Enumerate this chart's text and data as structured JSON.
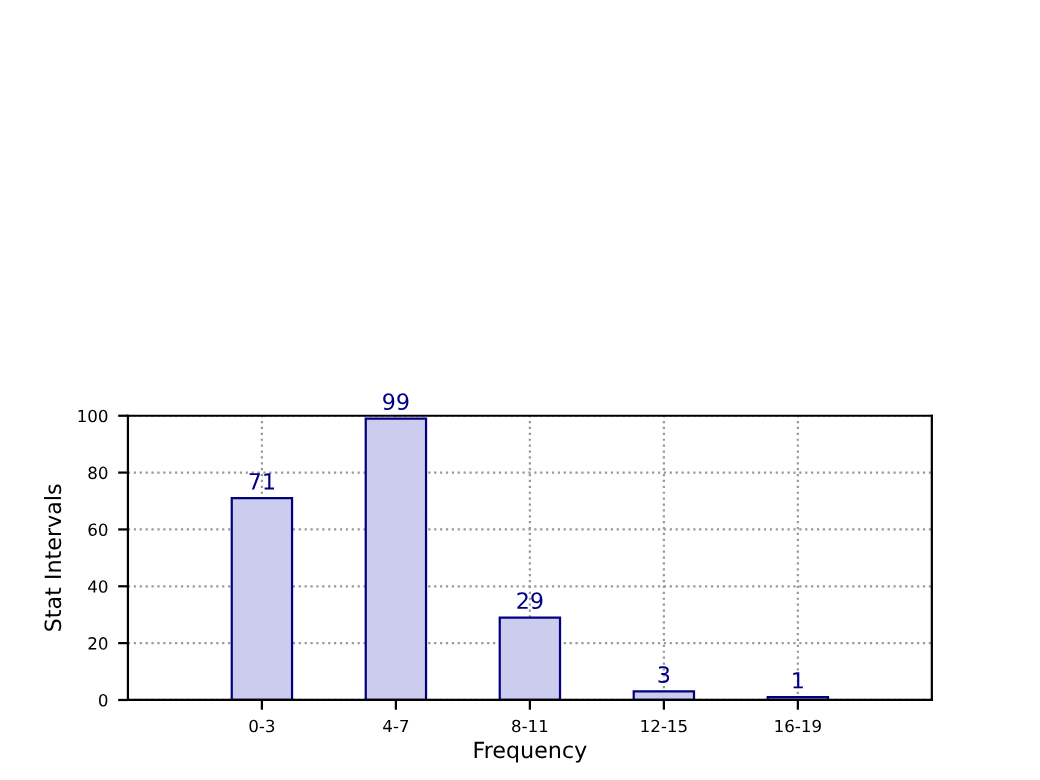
{
  "chart_data": {
    "type": "bar",
    "xlabel": "Frequency",
    "ylabel": "Stat Intervals",
    "categories": [
      "0-3",
      "4-7",
      "8-11",
      "12-15",
      "16-19"
    ],
    "values": [
      71,
      99,
      29,
      3,
      1
    ],
    "color": "#ccccee",
    "ylim": [
      0,
      100
    ],
    "yticks": [
      0,
      20,
      40,
      60,
      80,
      100
    ],
    "data_labels": true,
    "grid": true,
    "legend": false
  }
}
